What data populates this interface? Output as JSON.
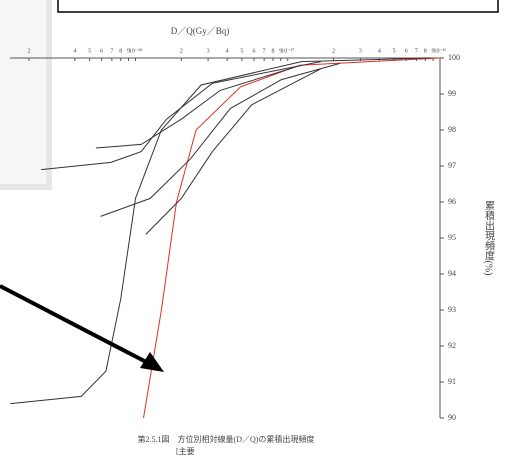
{
  "chart_data": {
    "type": "line",
    "log_x": true,
    "title": "D／Q(Gy／Bq)",
    "ylabel": "累積出現頻度(%)",
    "caption": [
      "第2.5.1図　方位別相対線量(D／Q)の累積出現頻度",
      "[主要"
    ],
    "xlim": [
      1.5e-19,
      1e-16
    ],
    "ylim": [
      90,
      100
    ],
    "yticks": [
      90,
      91,
      92,
      93,
      94,
      95,
      96,
      97,
      98,
      99,
      100
    ],
    "xticks": [
      {
        "value": 2e-19,
        "label": "2"
      },
      {
        "value": 4e-19,
        "label": "4"
      },
      {
        "value": 5e-19,
        "label": "5"
      },
      {
        "value": 6e-19,
        "label": "6"
      },
      {
        "value": 7e-19,
        "label": "7"
      },
      {
        "value": 8e-19,
        "label": "8"
      },
      {
        "value": 9e-19,
        "label": "9"
      },
      {
        "value": 1e-18,
        "label": "10⁻¹⁸"
      },
      {
        "value": 2e-18,
        "label": "2"
      },
      {
        "value": 3e-18,
        "label": "3"
      },
      {
        "value": 4e-18,
        "label": "4"
      },
      {
        "value": 5e-18,
        "label": "5"
      },
      {
        "value": 6e-18,
        "label": "6"
      },
      {
        "value": 7e-18,
        "label": "7"
      },
      {
        "value": 8e-18,
        "label": "8"
      },
      {
        "value": 9e-18,
        "label": "9"
      },
      {
        "value": 1e-17,
        "label": "10⁻¹⁷"
      },
      {
        "value": 2e-17,
        "label": "2"
      },
      {
        "value": 3e-17,
        "label": "3"
      },
      {
        "value": 4e-17,
        "label": "4"
      },
      {
        "value": 5e-17,
        "label": "5"
      },
      {
        "value": 6e-17,
        "label": "6"
      },
      {
        "value": 7e-17,
        "label": "7"
      },
      {
        "value": 8e-17,
        "label": "8"
      },
      {
        "value": 9e-17,
        "label": "9"
      },
      {
        "value": 1e-16,
        "label": "10⁻¹⁶"
      }
    ],
    "series": [
      {
        "color": "#e0302a",
        "x": [
          1.13e-18,
          1.48e-18,
          1.86e-18,
          2.5e-18,
          4.9e-18,
          1.2e-17,
          1e-16
        ],
        "values": [
          90,
          93,
          96,
          98,
          99.2,
          99.8,
          100
        ]
      },
      {
        "color": "#333333",
        "x": [
          1.51e-19,
          4.4e-19,
          6.4e-19,
          8e-19,
          1e-18,
          1.48e-18,
          2.7e-18,
          1.23e-17,
          8.7e-17
        ],
        "values": [
          90.4,
          90.6,
          91.3,
          93.3,
          96.1,
          98,
          99.25,
          99.9,
          100
        ]
      },
      {
        "color": "#333333",
        "x": [
          2.4e-19,
          6.9e-19,
          1.09e-18,
          1.6e-18,
          3.2e-18,
          1.65e-17
        ],
        "values": [
          96.9,
          97.1,
          97.4,
          98.3,
          99.3,
          99.9
        ]
      },
      {
        "color": "#333333",
        "x": [
          5.5e-19,
          1.09e-18,
          2e-18,
          3.6e-18,
          1.23e-17
        ],
        "values": [
          97.5,
          97.6,
          98.3,
          99.1,
          99.8
        ]
      },
      {
        "color": "#333333",
        "x": [
          5.9e-19,
          1.25e-18,
          2.3e-18,
          4.2e-18,
          9.1e-18,
          2.2e-17
        ],
        "values": [
          95.6,
          96.1,
          97.2,
          98.6,
          99.4,
          99.85
        ]
      },
      {
        "color": "#333333",
        "x": [
          1.17e-18,
          2e-18,
          3.2e-18,
          5.8e-18,
          1.65e-17
        ],
        "values": [
          95.1,
          96.1,
          97.4,
          98.7,
          99.7
        ]
      }
    ]
  }
}
